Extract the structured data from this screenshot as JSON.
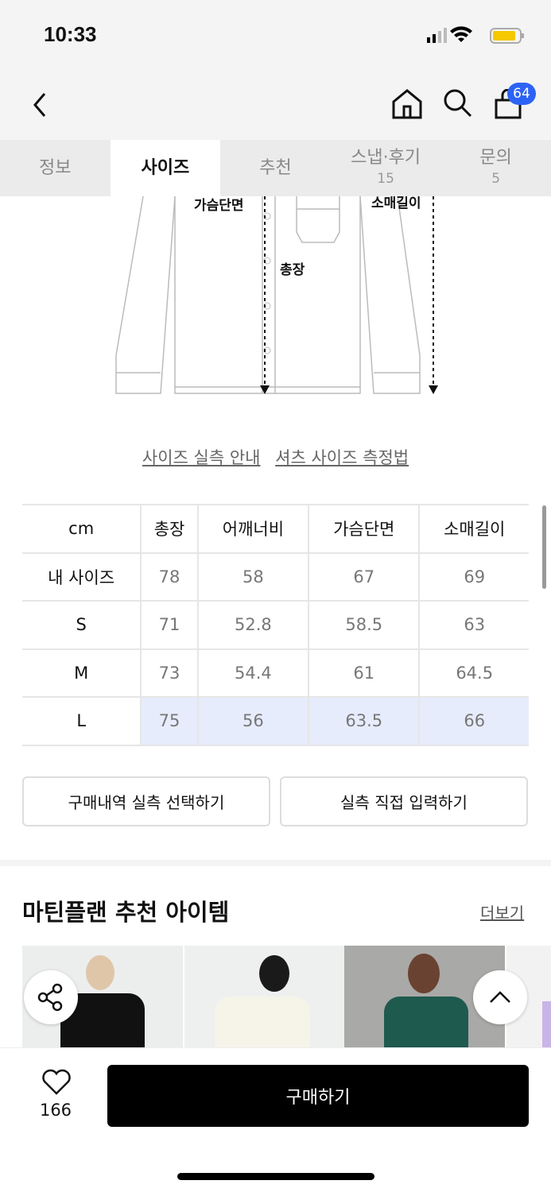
{
  "status": {
    "time": "10:33"
  },
  "header": {
    "cart_count": "64"
  },
  "tabs": [
    {
      "label": "정보",
      "count": ""
    },
    {
      "label": "사이즈",
      "count": ""
    },
    {
      "label": "추천",
      "count": ""
    },
    {
      "label": "스냅·후기",
      "count": "15"
    },
    {
      "label": "문의",
      "count": "5"
    }
  ],
  "diagram": {
    "chest": "가슴단면",
    "sleeve": "소매길이",
    "length": "총장"
  },
  "links": {
    "guide": "사이즈 실측 안내",
    "method": "셔츠 사이즈 측정법"
  },
  "size_table": {
    "headers": [
      "cm",
      "총장",
      "어깨너비",
      "가슴단면",
      "소매길이"
    ],
    "rows": [
      [
        "내 사이즈",
        "78",
        "58",
        "67",
        "69"
      ],
      [
        "S",
        "71",
        "52.8",
        "58.5",
        "63"
      ],
      [
        "M",
        "73",
        "54.4",
        "61",
        "64.5"
      ],
      [
        "L",
        "75",
        "56",
        "63.5",
        "66"
      ]
    ],
    "highlighted": "L"
  },
  "buttons": {
    "purchase_history": "구매내역 실측 선택하기",
    "direct_input": "실측 직접 입력하기"
  },
  "recommend": {
    "title": "마틴플랜 추천 아이템",
    "more": "더보기"
  },
  "bottom": {
    "likes": "166",
    "buy": "구매하기"
  },
  "colors": {
    "accent": "#2d63f5",
    "highlight": "#e6ecfc"
  }
}
